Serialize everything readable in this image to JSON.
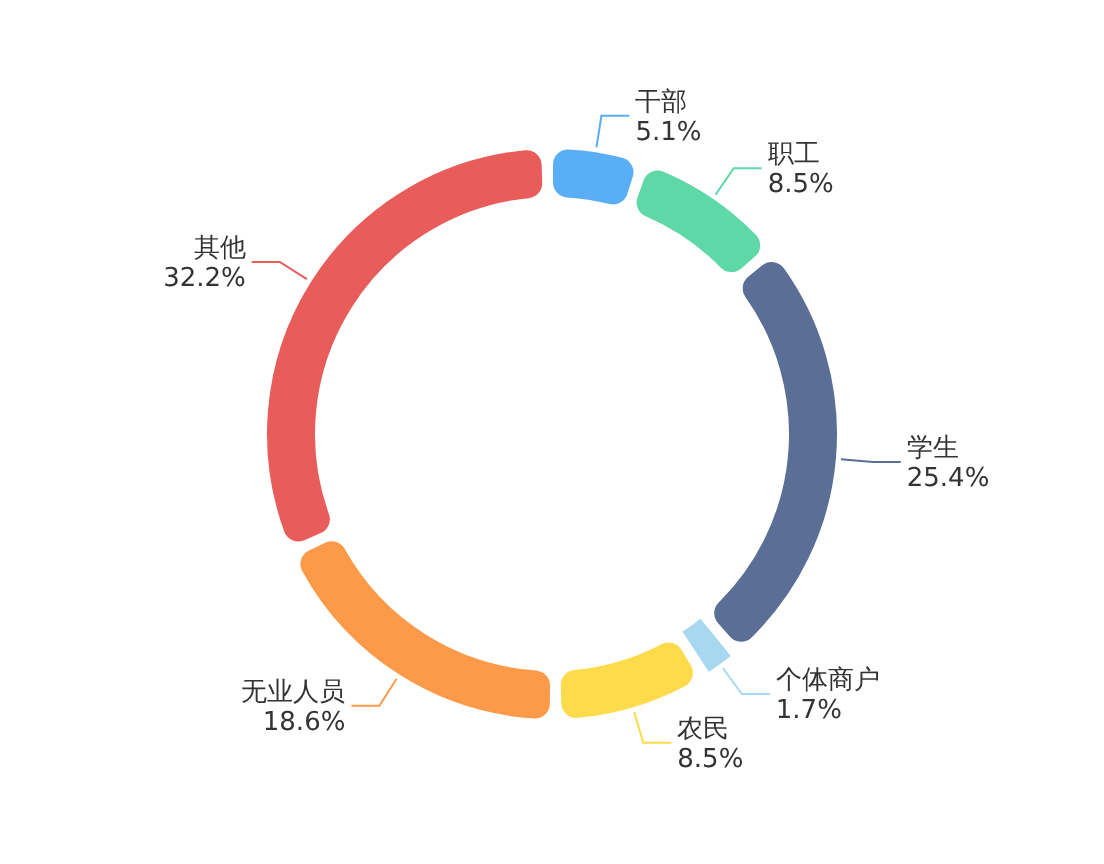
{
  "chart_data": {
    "type": "donut",
    "categories": [
      "干部",
      "职工",
      "学生",
      "个体商户",
      "农民",
      "无业人员",
      "其他"
    ],
    "values": [
      5.1,
      8.5,
      25.4,
      1.7,
      8.5,
      18.6,
      32.2
    ],
    "value_labels": [
      "5.1%",
      "8.5%",
      "25.4%",
      "1.7%",
      "8.5%",
      "18.6%",
      "32.2%"
    ],
    "colors": [
      "#5aaef5",
      "#5fd8a8",
      "#5a6e96",
      "#a8d8f0",
      "#fddb4a",
      "#fc9a4a",
      "#e85c5a"
    ],
    "legend": false
  }
}
